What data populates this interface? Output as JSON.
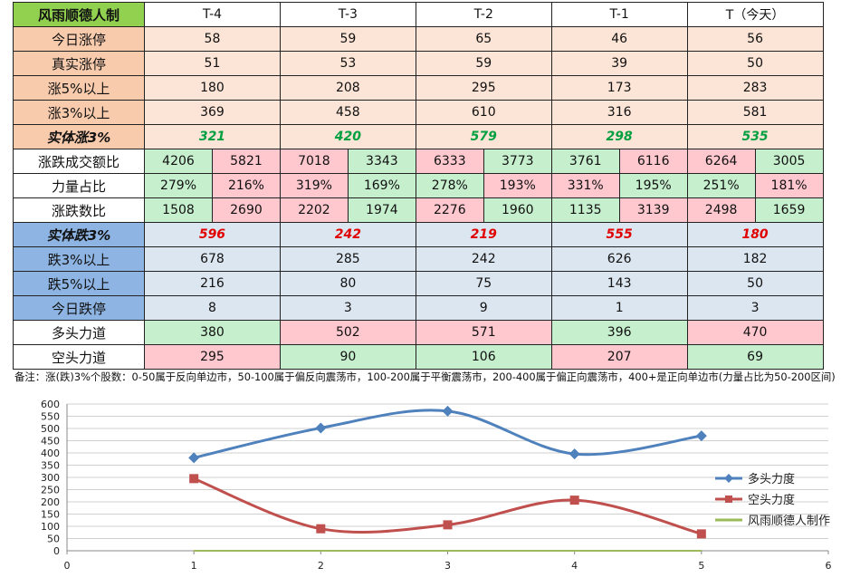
{
  "table": {
    "brand": "风雨顺德人制",
    "columns": [
      "T-4",
      "T-3",
      "T-2",
      "T-1",
      "T（今天）"
    ],
    "rows_top": [
      {
        "label": "今日涨停",
        "values": [
          "58",
          "59",
          "65",
          "46",
          "56"
        ]
      },
      {
        "label": "真实涨停",
        "values": [
          "51",
          "53",
          "59",
          "39",
          "50"
        ]
      },
      {
        "label": "涨5%以上",
        "values": [
          "180",
          "208",
          "295",
          "173",
          "283"
        ]
      },
      {
        "label": "涨3%以上",
        "values": [
          "369",
          "458",
          "610",
          "316",
          "581"
        ]
      }
    ],
    "solid_up": {
      "label": "实体涨3%",
      "values": [
        "321",
        "420",
        "579",
        "298",
        "535"
      ]
    },
    "paired_rows": [
      {
        "label": "涨跌成交额比",
        "values": [
          [
            "4206",
            "5821"
          ],
          [
            "7018",
            "3343"
          ],
          [
            "6333",
            "3773"
          ],
          [
            "3761",
            "6116"
          ],
          [
            "6264",
            "3005"
          ]
        ],
        "colors": [
          [
            "g",
            "p"
          ],
          [
            "p",
            "g"
          ],
          [
            "p",
            "g"
          ],
          [
            "g",
            "p"
          ],
          [
            "p",
            "g"
          ]
        ]
      },
      {
        "label": "力量占比",
        "values": [
          [
            "279%",
            "216%"
          ],
          [
            "319%",
            "169%"
          ],
          [
            "278%",
            "193%"
          ],
          [
            "331%",
            "195%"
          ],
          [
            "251%",
            "181%"
          ]
        ],
        "colors": [
          [
            "g",
            "p"
          ],
          [
            "p",
            "g"
          ],
          [
            "g",
            "p"
          ],
          [
            "p",
            "g"
          ],
          [
            "g",
            "p"
          ]
        ]
      },
      {
        "label": "涨跌数比",
        "values": [
          [
            "1508",
            "2690"
          ],
          [
            "2202",
            "1974"
          ],
          [
            "2276",
            "1960"
          ],
          [
            "1135",
            "3139"
          ],
          [
            "2498",
            "1659"
          ]
        ],
        "colors": [
          [
            "g",
            "p"
          ],
          [
            "p",
            "g"
          ],
          [
            "p",
            "g"
          ],
          [
            "g",
            "p"
          ],
          [
            "p",
            "g"
          ]
        ]
      }
    ],
    "solid_down": {
      "label": "实体跌3%",
      "values": [
        "596",
        "242",
        "219",
        "555",
        "180"
      ]
    },
    "rows_bottom": [
      {
        "label": "跌3%以上",
        "values": [
          "678",
          "285",
          "242",
          "626",
          "182"
        ]
      },
      {
        "label": "跌5%以上",
        "values": [
          "216",
          "80",
          "75",
          "143",
          "50"
        ]
      },
      {
        "label": "今日跌停",
        "values": [
          "8",
          "3",
          "9",
          "1",
          "3"
        ]
      }
    ],
    "long_power": {
      "label": "多头力道",
      "values": [
        "380",
        "502",
        "571",
        "396",
        "470"
      ],
      "colors": [
        "g",
        "p",
        "p",
        "g",
        "p"
      ]
    },
    "short_power": {
      "label": "空头力道",
      "values": [
        "295",
        "90",
        "106",
        "207",
        "69"
      ],
      "colors": [
        "p",
        "g",
        "g",
        "p",
        "g"
      ]
    }
  },
  "note": "备注：涨(跌)3%个股数：0-50属于反向单边市，50-100属于偏反向震荡市，100-200属于平衡震荡市，200-400属于偏正向震荡市，400+是正向单边市(力量占比为50-200区间)",
  "chart_data": {
    "type": "line",
    "x": [
      1,
      2,
      3,
      4,
      5
    ],
    "series": [
      {
        "name": "多头力度",
        "values": [
          380,
          502,
          571,
          396,
          470
        ],
        "color": "#4f81bd",
        "marker": "diamond"
      },
      {
        "name": "空头力度",
        "values": [
          295,
          90,
          106,
          207,
          69
        ],
        "color": "#c0504d",
        "marker": "square"
      },
      {
        "name": "风雨顺德人制作",
        "values": [
          0,
          0,
          0,
          0,
          0
        ],
        "color": "#9bbb59",
        "marker": "none"
      }
    ],
    "xlim": [
      0,
      6
    ],
    "ylim": [
      0,
      600
    ],
    "xticks": [
      "0",
      "1",
      "2",
      "3",
      "4",
      "5",
      "6"
    ],
    "yticks": [
      "0",
      "50",
      "100",
      "150",
      "200",
      "250",
      "300",
      "350",
      "400",
      "450",
      "500",
      "550",
      "600"
    ],
    "grid": true,
    "legend": "right"
  }
}
